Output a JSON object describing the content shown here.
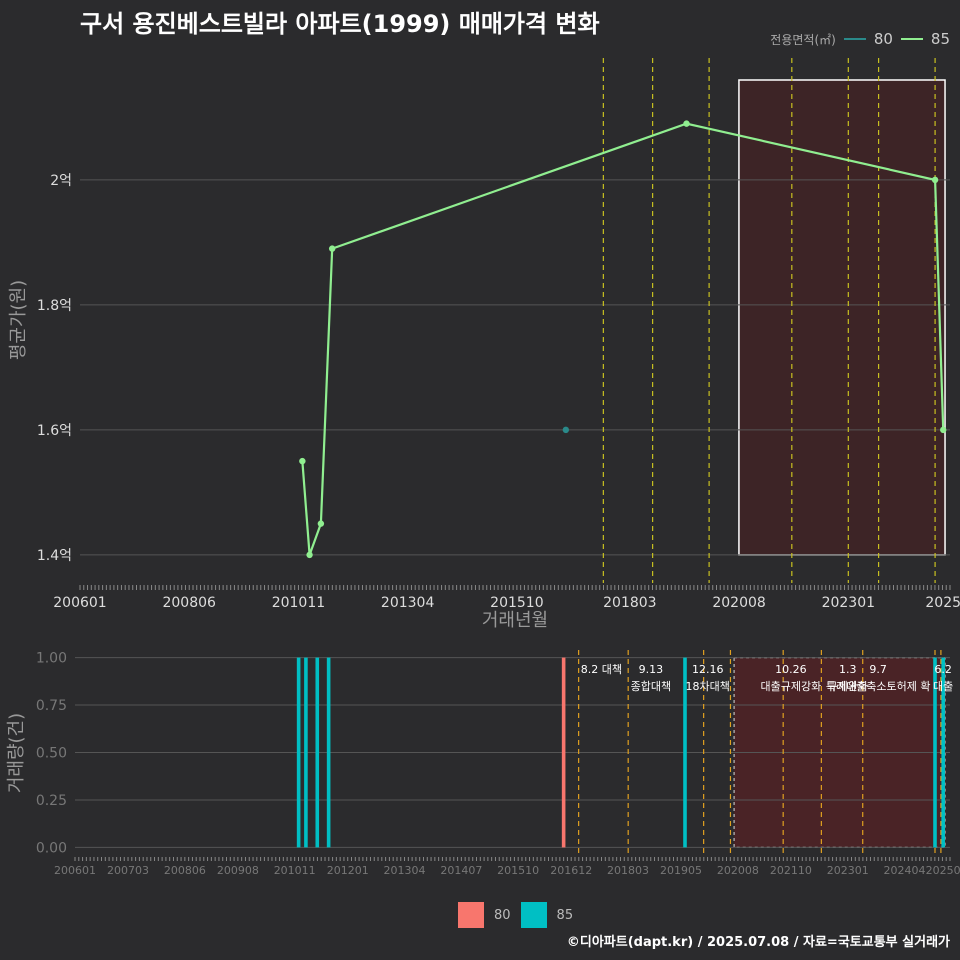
{
  "title": "구서 용진베스트빌라 아파트(1999) 매매가격 변화",
  "legend": {
    "title": "전용면적(㎡)",
    "items": [
      {
        "label": "80",
        "color": "#2a8a8a"
      },
      {
        "label": "85",
        "color": "#90ee90"
      }
    ]
  },
  "footer": "©디아파트(dapt.kr) / 2025.07.08 / 자료=국토교통부 실거래가",
  "chart_data": [
    {
      "type": "line",
      "title": "구서 용진베스트빌라 아파트(1999) 매매가격 변화",
      "xlabel": "거래년월",
      "ylabel": "평균가(원)",
      "xlim": [
        2006.0,
        2025.25
      ],
      "ylim": [
        1.355,
        2.195
      ],
      "x_tick_labels": [
        "200601",
        "200806",
        "201011",
        "201304",
        "201510",
        "201803",
        "202008",
        "202301",
        "2025"
      ],
      "x_tick_values": [
        2006.0,
        2008.4167,
        2010.8333,
        2013.25,
        2015.6667,
        2018.1667,
        2020.5833,
        2023.0,
        2025.1
      ],
      "y_tick_labels": [
        "1.4억",
        "1.6억",
        "1.8억",
        "2억"
      ],
      "y_tick_values": [
        1.4,
        1.6,
        1.8,
        2.0
      ],
      "series": [
        {
          "name": "80",
          "color": "#2a8a8a",
          "points": [
            {
              "x": 2016.75,
              "y": 1.6
            }
          ]
        },
        {
          "name": "85",
          "color": "#90ee90",
          "points": [
            {
              "x": 2010.92,
              "y": 1.55
            },
            {
              "x": 2011.08,
              "y": 1.4
            },
            {
              "x": 2011.33,
              "y": 1.45
            },
            {
              "x": 2011.58,
              "y": 1.89
            },
            {
              "x": 2019.42,
              "y": 2.09
            },
            {
              "x": 2024.92,
              "y": 2.0
            },
            {
              "x": 2025.1,
              "y": 1.6
            }
          ]
        }
      ],
      "policy_lines": [
        2017.58,
        2018.67,
        2019.92,
        2021.75,
        2023.0,
        2023.67,
        2024.92
      ],
      "highlight_range": [
        2020.58,
        2025.14
      ]
    },
    {
      "type": "bar",
      "xlabel": "",
      "ylabel": "거래량(건)",
      "ylim": [
        -0.04,
        1.04
      ],
      "y_tick_labels": [
        "0.00",
        "0.25",
        "0.50",
        "0.75",
        "1.00"
      ],
      "y_tick_values": [
        0,
        0.25,
        0.5,
        0.75,
        1.0
      ],
      "x_tick_labels": [
        "200601",
        "200703",
        "200806",
        "200908",
        "201011",
        "201201",
        "201304",
        "201407",
        "201510",
        "201612",
        "201803",
        "201905",
        "202008",
        "202110",
        "202301",
        "202404",
        "20250"
      ],
      "x_tick_values": [
        2006.0,
        2007.1667,
        2008.4167,
        2009.5833,
        2010.8333,
        2012.0,
        2013.25,
        2014.5,
        2015.75,
        2016.9167,
        2018.1667,
        2019.3333,
        2020.5833,
        2021.75,
        2023.0,
        2024.25,
        2025.1
      ],
      "series": [
        {
          "name": "80",
          "color": "#f8766d",
          "bars": [
            {
              "x": 2016.75,
              "value": 1
            }
          ]
        },
        {
          "name": "85",
          "color": "#00bfc4",
          "bars": [
            {
              "x": 2010.92,
              "value": 1
            },
            {
              "x": 2011.08,
              "value": 1
            },
            {
              "x": 2011.33,
              "value": 1
            },
            {
              "x": 2011.58,
              "value": 1
            },
            {
              "x": 2019.42,
              "value": 1
            },
            {
              "x": 2024.92,
              "value": 1
            },
            {
              "x": 2025.1,
              "value": 1
            }
          ]
        }
      ],
      "policy_lines": [
        2017.08,
        2018.17,
        2019.83,
        2020.42,
        2021.58,
        2022.42,
        2023.33,
        2024.92,
        2025.05
      ],
      "highlight_range": [
        2020.5,
        2025.14
      ],
      "annotations": [
        {
          "date": "8.2 대책",
          "name": "",
          "x": 2017.58
        },
        {
          "date": "9.13",
          "name": "종합대책",
          "x": 2018.67
        },
        {
          "date": "12.16",
          "name": "18차대책",
          "x": 2019.92
        },
        {
          "date": "10.26",
          "name": "대출규제강화",
          "x": 2021.75
        },
        {
          "date": "1.3",
          "name": "규제완화",
          "x": 2023.0
        },
        {
          "date": "9.7",
          "name": "특례대출축소토허제 확",
          "x": 2023.67
        },
        {
          "date": "6.2",
          "name": "대출",
          "x": 2025.1
        }
      ]
    }
  ]
}
